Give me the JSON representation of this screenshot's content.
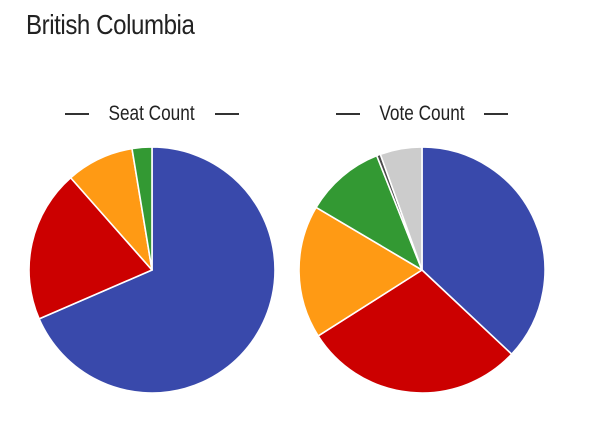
{
  "page": {
    "title": "British Columbia"
  },
  "chart_data": [
    {
      "type": "pie",
      "title": "Seat Count",
      "start_angle_deg": 0,
      "direction": "clockwise",
      "slices": [
        {
          "value": 68.5,
          "color": "#3949ab"
        },
        {
          "value": 20.0,
          "color": "#cc0000"
        },
        {
          "value": 8.9,
          "color": "#ff9a14"
        },
        {
          "value": 2.6,
          "color": "#339933"
        }
      ]
    },
    {
      "type": "pie",
      "title": "Vote Count",
      "start_angle_deg": 0,
      "direction": "clockwise",
      "slices": [
        {
          "value": 37.0,
          "color": "#3949ab"
        },
        {
          "value": 29.0,
          "color": "#cc0000"
        },
        {
          "value": 17.5,
          "color": "#ff9a14"
        },
        {
          "value": 10.5,
          "color": "#339933"
        },
        {
          "value": 0.5,
          "color": "#4a4a4a"
        },
        {
          "value": 5.5,
          "color": "#cccccc"
        }
      ]
    }
  ]
}
